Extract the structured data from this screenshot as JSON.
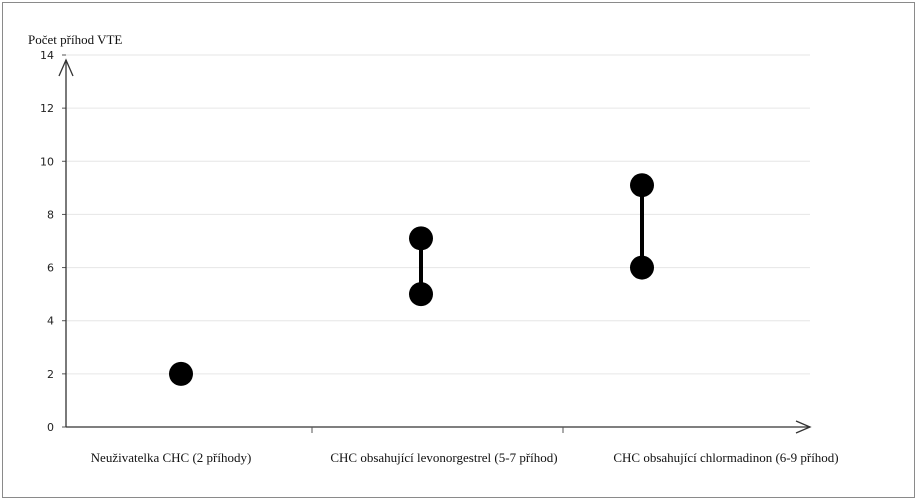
{
  "chart_data": {
    "type": "scatter",
    "ylabel": "Počet příhod VTE",
    "xlabel": "",
    "ylim": [
      0,
      14
    ],
    "yticks": [
      0,
      2,
      4,
      6,
      8,
      10,
      12,
      14
    ],
    "ytick_labels": [
      "0",
      "2",
      "4",
      "6",
      "8",
      "10",
      "12",
      "14"
    ],
    "grid": true,
    "categories": [
      "Neuživatelka CHC (2 příhody)",
      "CHC obsahující levonorgestrel (5-7 příhod)",
      "CHC obsahující chlormadinon (6-9 příhod)"
    ],
    "points": [
      {
        "category": 0,
        "values": [
          2
        ]
      },
      {
        "category": 1,
        "values": [
          5,
          7.1
        ]
      },
      {
        "category": 2,
        "values": [
          6,
          9.1
        ]
      }
    ],
    "marker_color": "#000000"
  }
}
